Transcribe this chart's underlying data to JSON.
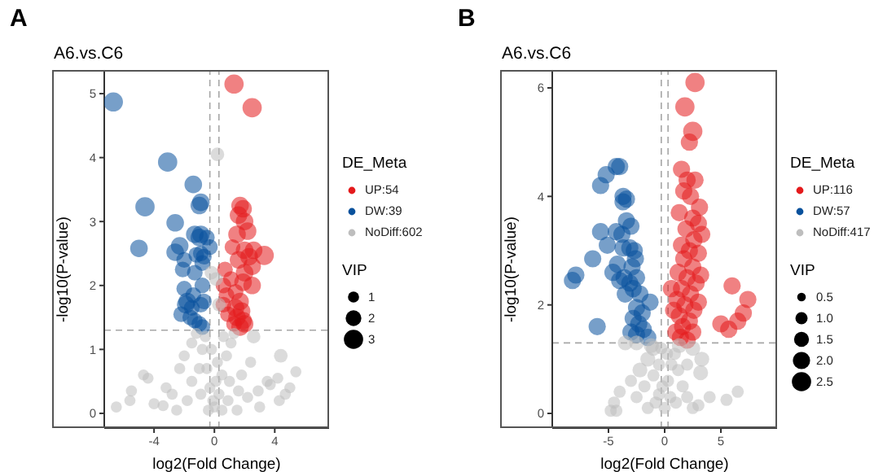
{
  "chart_data": [
    {
      "type": "bubble",
      "title": "A6.vs.C6",
      "xlabel": "log2(Fold Change)",
      "ylabel": "-log10(P-value)",
      "legend_title": "DE_Meta",
      "annotations": [
        "A",
        "VIP"
      ],
      "legend": "right",
      "marker": "circle",
      "xlim": [
        -7.3,
        7.6
      ],
      "ylim": [
        -0.23,
        5.37
      ],
      "xticks": [
        -4,
        0,
        4
      ],
      "yticks": [
        0,
        1,
        2,
        3,
        4,
        5
      ],
      "size_legend": [
        1,
        2,
        3
      ],
      "ref_lines": [
        {
          "axis": "x",
          "value": -0.3,
          "color": "#a6a6a6",
          "line_style": "dashed"
        },
        {
          "axis": "x",
          "value": 0.3,
          "color": "#a6a6a6",
          "line_style": "dashed"
        },
        {
          "axis": "y",
          "value": 1.3,
          "color": "#a6a6a6",
          "line_style": "dashed"
        }
      ],
      "series": [
        {
          "name": "UP:54",
          "color": "#e41a1c",
          "x": [
            1.3,
            2.5,
            1.7,
            1.9,
            1.6,
            2.0,
            2.2,
            1.5,
            2.6,
            3.3,
            2.0,
            2.3,
            1.6,
            2.5,
            2.0,
            0.7,
            1.1,
            1.9,
            0.6,
            1.4,
            0.8,
            1.7,
            1.4,
            1.8,
            0.9,
            1.5,
            1.9,
            1.3,
            1.7,
            2.0,
            2.5,
            1.2,
            0.6
          ],
          "values": [
            5.15,
            4.78,
            3.25,
            3.2,
            3.1,
            3.0,
            2.85,
            2.8,
            2.55,
            2.47,
            2.55,
            2.45,
            2.4,
            2.3,
            2.2,
            2.25,
            2.1,
            2.05,
            2.0,
            1.9,
            1.85,
            1.75,
            1.65,
            1.6,
            1.55,
            1.5,
            1.45,
            1.4,
            1.35,
            1.4,
            2.0,
            2.6,
            1.7
          ],
          "sizes": [
            3,
            3,
            2.5,
            2.5,
            2.5,
            2.5,
            2.5,
            2.5,
            2.5,
            3,
            2.5,
            2.5,
            2.5,
            2.5,
            2.5,
            2,
            2,
            2.5,
            2,
            2,
            2,
            2.5,
            2.5,
            2.5,
            2,
            2.5,
            2.5,
            2,
            2.5,
            2.5,
            2.5,
            2,
            2
          ]
        },
        {
          "name": "DW:39",
          "color": "#08519c",
          "x": [
            -6.7,
            -3.1,
            -4.6,
            -5.0,
            -2.6,
            -1.4,
            -0.9,
            -1.0,
            -1.3,
            -0.9,
            -1.0,
            -0.5,
            -2.3,
            -2.6,
            -0.7,
            -0.9,
            -0.3,
            -1.2,
            -0.8,
            -2.0,
            -2.1,
            -1.3,
            -0.8,
            -2.0,
            -1.4,
            -1.8,
            -1.9,
            -1.5,
            -0.9,
            -0.7,
            -1.6,
            -1.3,
            -1.0,
            -2.2,
            -0.8
          ],
          "values": [
            4.87,
            3.93,
            3.23,
            2.58,
            2.98,
            3.58,
            3.3,
            3.25,
            2.8,
            2.8,
            2.75,
            2.75,
            2.62,
            2.52,
            2.45,
            2.5,
            2.6,
            2.48,
            2.35,
            2.4,
            2.25,
            2.2,
            2.0,
            1.95,
            1.85,
            1.75,
            1.7,
            1.65,
            1.7,
            1.75,
            1.5,
            1.45,
            1.4,
            1.55,
            1.35
          ],
          "sizes": [
            3,
            3,
            3,
            2.5,
            2.5,
            2.5,
            2.5,
            2.5,
            2.5,
            2.5,
            2.5,
            2,
            2.5,
            2.5,
            2,
            2,
            2,
            2,
            2,
            2,
            2,
            2,
            2,
            2,
            2,
            2.5,
            2.5,
            2,
            2,
            2,
            2,
            2,
            2,
            2,
            2
          ]
        },
        {
          "name": "NoDiff:602",
          "color": "#bebebe",
          "x": [
            0.2,
            0.1,
            -0.2,
            0.3,
            4.4,
            5.4,
            4.2,
            3.7,
            5.0,
            4.7,
            4.3,
            3.5,
            2.9,
            2.2,
            2.4,
            -6.5,
            -5.6,
            -5.5,
            -4.0,
            -3.4,
            -4.7,
            -4.4,
            -3.2,
            -2.8,
            -2.3,
            -2.0,
            -1.5,
            -1.2,
            -0.8,
            -0.5,
            -0.3,
            0,
            0.3,
            0.5,
            0.8,
            1.1,
            1.3,
            2.6,
            1.8,
            -1.5,
            -0.9,
            0.9,
            0.5,
            -0.4,
            -2.5,
            1.5,
            3.0,
            -1.8,
            1.6,
            -1.0,
            1.0,
            0.2,
            -0.2,
            0.6,
            -0.6,
            0.1,
            -0.1
          ],
          "values": [
            4.05,
            2.1,
            2.2,
            1.7,
            0.9,
            0.65,
            0.55,
            0.45,
            0.4,
            0.3,
            0.2,
            0.5,
            0.35,
            0.25,
            0.8,
            0.1,
            0.2,
            0.35,
            0.15,
            0.12,
            0.6,
            0.55,
            0.4,
            0.3,
            0.7,
            0.9,
            1.1,
            1.25,
            1.0,
            0.7,
            0.4,
            0.1,
            0.3,
            0.6,
            0.9,
            1.1,
            1.25,
            1.2,
            0.6,
            0.5,
            0.3,
            0.2,
            0.05,
            0.05,
            0.05,
            0.05,
            0.1,
            0.2,
            0.35,
            0.7,
            0.5,
            0.8,
            1.0,
            1.2,
            1.2,
            0.5,
            0.2
          ],
          "sizes": [
            1.5,
            1.5,
            1.5,
            1.5,
            1.5,
            1,
            1,
            1,
            1,
            1,
            1,
            1,
            1,
            1,
            1,
            1,
            1,
            1,
            1,
            1,
            1,
            1,
            1,
            1,
            1,
            1,
            1,
            1,
            1,
            1,
            1,
            1,
            1,
            1,
            1,
            1,
            1,
            1.5,
            1,
            1,
            1,
            1,
            1,
            1,
            1,
            1,
            1,
            1,
            1,
            1,
            1,
            1,
            1,
            1,
            1,
            1,
            1
          ]
        }
      ]
    },
    {
      "type": "bubble",
      "title": "A6.vs.C6",
      "xlabel": "log2(Fold Change)",
      "ylabel": "-log10(P-value)",
      "legend_title": "DE_Meta",
      "annotations": [
        "B",
        "VIP"
      ],
      "legend": "right",
      "marker": "circle",
      "xlim": [
        -10,
        10
      ],
      "ylim": [
        -0.27,
        6.33
      ],
      "xticks": [
        -5,
        0,
        5
      ],
      "yticks": [
        0,
        2,
        4,
        6
      ],
      "size_legend": [
        0.5,
        {
          "value": 1,
          "label": "1.0"
        },
        1.5,
        {
          "value": 2,
          "label": "2.0"
        },
        2.5
      ],
      "ref_lines": [
        {
          "axis": "x",
          "value": -0.3,
          "color": "#a6a6a6",
          "line_style": "dashed"
        },
        {
          "axis": "x",
          "value": 0.3,
          "color": "#a6a6a6",
          "line_style": "dashed"
        },
        {
          "axis": "y",
          "value": 1.3,
          "color": "#a6a6a6",
          "line_style": "dashed"
        }
      ],
      "series": [
        {
          "name": "UP:116",
          "color": "#e41a1c",
          "x": [
            2.7,
            1.8,
            2.5,
            2.2,
            1.5,
            2.0,
            2.7,
            1.7,
            2.3,
            3.1,
            1.3,
            2.5,
            3.0,
            1.9,
            3.3,
            2.6,
            1.5,
            2.2,
            3.0,
            1.7,
            2.5,
            1.2,
            3.2,
            2.0,
            2.8,
            1.5,
            2.3,
            1.1,
            3.0,
            1.8,
            2.6,
            1.3,
            2.2,
            1.6,
            1.0,
            2.5,
            1.4,
            2.0,
            6.0,
            7.4,
            7.0,
            6.5,
            5.0,
            5.7,
            0.8,
            0.6
          ],
          "values": [
            6.1,
            5.65,
            5.2,
            5.0,
            4.5,
            4.3,
            4.3,
            4.1,
            4.0,
            3.8,
            3.7,
            3.6,
            3.5,
            3.4,
            3.3,
            3.2,
            3.1,
            3.0,
            2.95,
            2.85,
            2.7,
            2.6,
            2.55,
            2.5,
            2.4,
            2.3,
            2.2,
            2.1,
            2.05,
            2.0,
            1.9,
            1.8,
            1.7,
            1.6,
            1.5,
            1.5,
            1.4,
            1.35,
            2.35,
            2.1,
            1.85,
            1.7,
            1.65,
            1.55,
            1.9,
            2.3
          ],
          "sizes": [
            2.5,
            2.5,
            2.5,
            2,
            2,
            2,
            2,
            2,
            2,
            2,
            2,
            2,
            2,
            2,
            2,
            2,
            2,
            2,
            2,
            2,
            2,
            2,
            2,
            2,
            2,
            2,
            2,
            2,
            2,
            2,
            2,
            2,
            2,
            2,
            2,
            2,
            2,
            2,
            2,
            2,
            2,
            2,
            2,
            2,
            2,
            2
          ]
        },
        {
          "name": "DW:57",
          "color": "#08519c",
          "x": [
            -8.2,
            -7.9,
            -5.2,
            -5.7,
            -4.3,
            -4.0,
            -3.7,
            -3.4,
            -3.7,
            -5.7,
            -4.3,
            -3.8,
            -3.4,
            -3.0,
            -5.1,
            -3.7,
            -3.1,
            -2.7,
            -6.4,
            -4.6,
            -4.2,
            -2.9,
            -2.6,
            -4.0,
            -3.6,
            -3.1,
            -2.5,
            -3.5,
            -2.8,
            -2.2,
            -1.3,
            -2.5,
            -2.0,
            -2.8,
            -2.3,
            -3.0,
            -2.5,
            -1.9,
            -6.0,
            -1.5
          ],
          "values": [
            2.45,
            2.55,
            4.4,
            4.2,
            4.55,
            4.55,
            4.0,
            3.95,
            3.9,
            3.35,
            3.35,
            3.3,
            3.55,
            3.45,
            3.1,
            3.05,
            3.05,
            3.0,
            2.85,
            2.6,
            2.75,
            2.7,
            2.85,
            2.45,
            2.5,
            2.4,
            2.5,
            2.2,
            2.3,
            2.2,
            2.05,
            1.95,
            1.85,
            1.75,
            1.65,
            1.5,
            1.45,
            1.55,
            1.6,
            1.4
          ],
          "sizes": [
            2,
            2,
            2,
            2,
            2,
            2,
            2,
            2,
            2,
            2,
            2,
            2,
            2,
            2,
            2,
            2,
            2,
            2,
            2,
            2,
            2,
            2,
            2,
            2,
            2,
            2,
            2,
            2,
            2,
            2,
            2,
            2,
            2,
            2,
            2,
            2,
            2,
            2,
            2,
            2
          ]
        },
        {
          "name": "NoDiff:417",
          "color": "#bebebe",
          "x": [
            -3.5,
            -2.5,
            -1.0,
            2.5,
            3.3,
            3.2,
            4.0,
            5.5,
            6.5,
            -1.5,
            -2.2,
            -3.0,
            -4.0,
            -4.5,
            -4.8,
            -4.3,
            -2.5,
            -1.8,
            -1.0,
            -0.5,
            -0.2,
            0,
            0.3,
            0.6,
            0.9,
            1.2,
            1.6,
            2.0,
            2.5,
            1.0,
            -0.8,
            -1.5,
            0.5,
            -0.5,
            1.3,
            -1.2,
            2.0,
            0.2,
            -0.3,
            3.0
          ],
          "values": [
            1.3,
            1.3,
            1.2,
            1.2,
            1.0,
            0.75,
            0.3,
            0.25,
            0.4,
            1.0,
            0.8,
            0.6,
            0.4,
            0.2,
            0.05,
            0.05,
            0.3,
            0.5,
            0.7,
            0.9,
            0.5,
            0.1,
            0.6,
            0.9,
            1.1,
            0.8,
            0.5,
            0.3,
            0.1,
            0.2,
            0.2,
            0.1,
            0.3,
            0.35,
            1.25,
            1.25,
            0.9,
            1.1,
            1.2,
            0.15
          ],
          "sizes": [
            1.5,
            1.5,
            1.5,
            1.5,
            1.5,
            1.5,
            1,
            1,
            1,
            1.5,
            1.5,
            1,
            1,
            1,
            1,
            1,
            1,
            1,
            1,
            1,
            1,
            1,
            1,
            1,
            1,
            1,
            1,
            1,
            1,
            1,
            1,
            1,
            1,
            1,
            1.5,
            1.5,
            1,
            1,
            1,
            1
          ]
        }
      ]
    }
  ]
}
